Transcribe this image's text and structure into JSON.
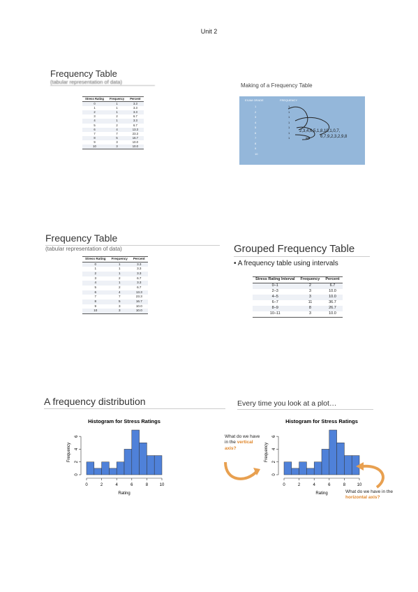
{
  "header": {
    "title": "Unit 2"
  },
  "slides": [
    {
      "title": "Frequency Table",
      "subtitle": "(tabular representation of data)"
    },
    {
      "title": "Making of a Frequency Table",
      "columns": [
        "EXAM GRADE",
        "FREQUENCY"
      ],
      "grades": [
        "1",
        "2",
        "3",
        "4",
        "5",
        "6",
        "7",
        "8",
        "9",
        "10"
      ],
      "tallies": [
        "1",
        "1",
        "1",
        "1",
        "1",
        "1",
        "1"
      ],
      "raw_scores": [
        "2,3,4,6,5,1,8,10,1,0,7,",
        "6,7,9,2,3,2,9,8"
      ]
    },
    {
      "title": "Frequency Table",
      "subtitle": "(tabular representation of data)"
    },
    {
      "title": "Grouped Frequency Table",
      "bullet": "A frequency table using intervals",
      "table": {
        "columns": [
          "Stress Rating Interval",
          "Frequency",
          "Percent"
        ],
        "rows": [
          [
            "0–1",
            "2",
            "6.7"
          ],
          [
            "2–3",
            "3",
            "10.0"
          ],
          [
            "4–5",
            "3",
            "10.0"
          ],
          [
            "6–7",
            "11",
            "36.7"
          ],
          [
            "8–9",
            "8",
            "26.7"
          ],
          [
            "10–11",
            "3",
            "10.0"
          ]
        ]
      }
    },
    {
      "title": "A frequency distribution"
    },
    {
      "title": "Every time you look at a plot…",
      "notes": [
        {
          "text": "What do we have in the",
          "emphasis": "vertical axis?"
        },
        {
          "text": "What do we have in the",
          "emphasis": "horizontal axis?"
        }
      ]
    }
  ],
  "frequency_table": {
    "columns": [
      "Stress Rating",
      "Frequency",
      "Percent"
    ],
    "rows": [
      [
        "0",
        "1",
        "3.3"
      ],
      [
        "1",
        "1",
        "3.3"
      ],
      [
        "2",
        "1",
        "3.3"
      ],
      [
        "3",
        "2",
        "6.7"
      ],
      [
        "4",
        "1",
        "3.3"
      ],
      [
        "5",
        "2",
        "6.7"
      ],
      [
        "6",
        "4",
        "13.3"
      ],
      [
        "7",
        "7",
        "23.3"
      ],
      [
        "8",
        "5",
        "16.7"
      ],
      [
        "9",
        "3",
        "10.0"
      ],
      [
        "10",
        "3",
        "10.0"
      ]
    ]
  },
  "histogram": {
    "type": "histogram",
    "title": "Histogram for Stress Ratings",
    "x_label": "Rating",
    "y_label": "Frequency",
    "color": "#4f81d9",
    "bins": [
      0,
      1,
      2,
      3,
      4,
      5,
      6,
      7,
      8,
      9,
      10
    ],
    "values": [
      2,
      1,
      2,
      1,
      2,
      4,
      7,
      5,
      3,
      3
    ],
    "xlim": [
      0,
      10
    ],
    "xticks": [
      0,
      2,
      4,
      6,
      8,
      10
    ],
    "ylim": [
      0,
      7
    ],
    "yticks": [
      0,
      2,
      4,
      6
    ]
  }
}
